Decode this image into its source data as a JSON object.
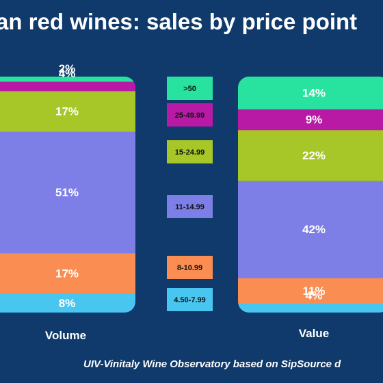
{
  "title": "an red wines: sales by price point",
  "source": "UIV-Vinitaly Wine Observatory based on SipSource d",
  "chart_data": {
    "type": "bar",
    "stacked": true,
    "percent": true,
    "categories": [
      "Volume",
      "Value"
    ],
    "series": [
      {
        "name": "4.50-7.99",
        "color": "#49c6f0",
        "values": [
          8,
          4
        ]
      },
      {
        "name": "8-10.99",
        "color": "#f98d52",
        "values": [
          17,
          11
        ]
      },
      {
        "name": "11-14.99",
        "color": "#7d7fe6",
        "values": [
          51,
          42
        ]
      },
      {
        "name": "15-24.99",
        "color": "#a7c627",
        "values": [
          17,
          22
        ]
      },
      {
        "name": "25-49.99",
        "color": "#b81aa5",
        "values": [
          4,
          9
        ]
      },
      {
        "name": ">50",
        "color": "#27e39f",
        "values": [
          2,
          14
        ]
      }
    ],
    "labels": [
      [
        "8%",
        "17%",
        "51%",
        "17%",
        "4%",
        "2%"
      ],
      [
        "4%",
        "11%",
        "42%",
        "22%",
        "9%",
        "14%"
      ]
    ]
  }
}
